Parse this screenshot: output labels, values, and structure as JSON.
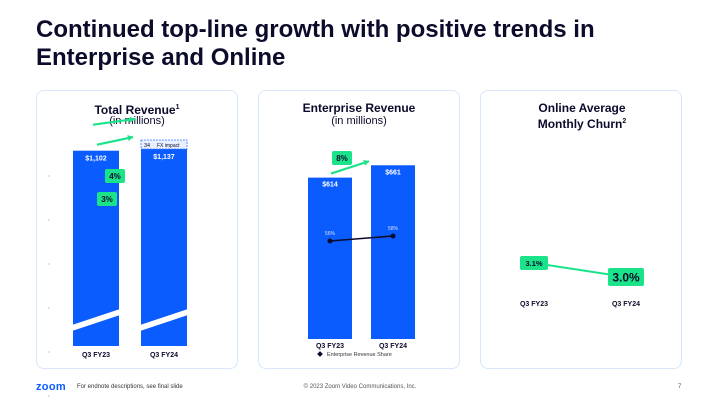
{
  "slide": {
    "title": "Continued top-line growth with positive trends in Enterprise and Online",
    "footer_logo": "zoom",
    "footer_note": "For endnote descriptions, see final slide",
    "footer_copyright": "© 2023 Zoom Video Communications, Inc.",
    "page_number": "7"
  },
  "colors": {
    "bar": "#0b5cff",
    "growth": "#1be38a",
    "text": "#0b0b2b"
  },
  "chart_data": [
    {
      "type": "bar",
      "title": "Total Revenue",
      "title_sup": "1",
      "subtitle": "(in millions)",
      "categories": [
        "Q3 FY23",
        "Q3 FY24"
      ],
      "values": [
        1102,
        1137
      ],
      "value_labels": [
        "$1,102",
        "$1,137"
      ],
      "fx_impact": {
        "value": 34,
        "value_label": "34",
        "label": "FX impact"
      },
      "growth_badges": [
        "4%",
        "3%"
      ],
      "axis_break": true
    },
    {
      "type": "bar",
      "title": "Enterprise Revenue",
      "subtitle": "(in millions)",
      "categories": [
        "Q3 FY23",
        "Q3 FY24"
      ],
      "values": [
        614,
        661
      ],
      "value_labels": [
        "$614",
        "$661"
      ],
      "growth_badges": [
        "8%"
      ],
      "share_series": {
        "name": "Enterprise Revenue Share",
        "values": [
          56,
          58
        ],
        "value_labels": [
          "56%",
          "58%"
        ]
      }
    },
    {
      "type": "line",
      "title": "Online Average Monthly Churn",
      "title_sup": "2",
      "categories": [
        "Q3 FY23",
        "Q3 FY24"
      ],
      "values": [
        3.1,
        3.0
      ],
      "value_labels": [
        "3.1%",
        "3.0%"
      ]
    }
  ]
}
